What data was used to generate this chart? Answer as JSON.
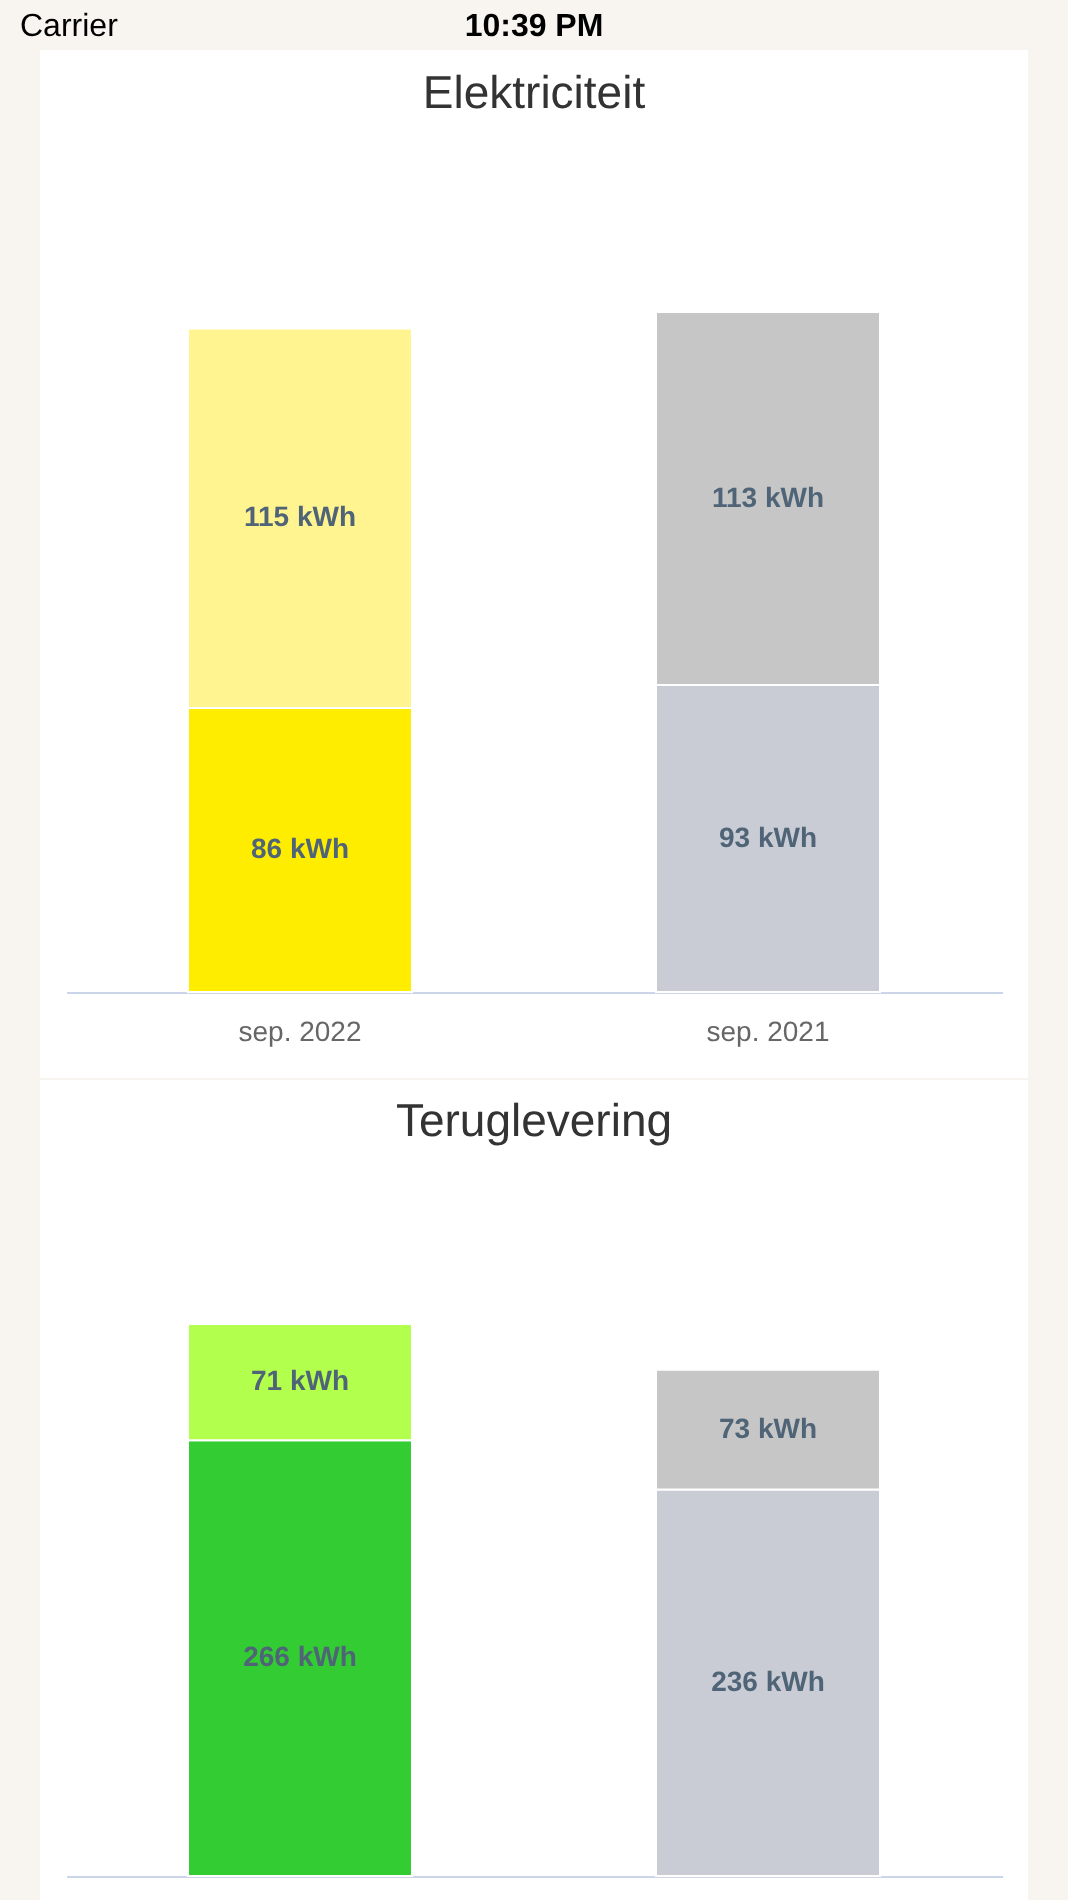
{
  "chart_data": [
    {
      "type": "bar",
      "stacked": true,
      "title": "Elektriciteit",
      "categories": [
        "sep. 2022",
        "sep. 2021"
      ],
      "series": [
        {
          "colors": [
            "#ffed00",
            "#c9ccd4"
          ],
          "values": [
            86,
            93
          ],
          "value_labels": [
            "86 kWh",
            "93 kWh"
          ]
        },
        {
          "colors": [
            "#fff48f",
            "#c6c6c6"
          ],
          "values": [
            115,
            113
          ],
          "value_labels": [
            "115 kWh",
            "113 kWh"
          ]
        }
      ],
      "annotations": [
        "Carrier",
        "10:39 PM"
      ]
    },
    {
      "type": "bar",
      "stacked": true,
      "title": "Teruglevering",
      "categories": [
        null,
        null
      ],
      "series": [
        {
          "colors": [
            "#33cc33",
            "#c9ccd4"
          ],
          "values": [
            266,
            236
          ],
          "value_labels": [
            "266 kWh",
            "236 kWh"
          ]
        },
        {
          "colors": [
            "#b3ff4d",
            "#c6c6c6"
          ],
          "values": [
            71,
            73
          ],
          "value_labels": [
            "71 kWh",
            "73 kWh"
          ]
        }
      ]
    }
  ]
}
